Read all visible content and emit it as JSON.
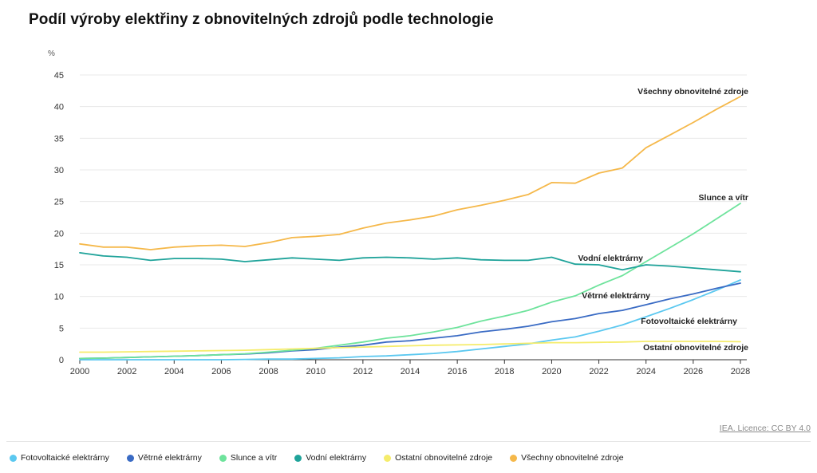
{
  "title": "Podíl výroby elektřiny z obnovitelných zdrojů podle technologie",
  "source": "IEA. Licence: CC BY 4.0",
  "chart_data": {
    "type": "line",
    "title": "Podíl výroby elektřiny z obnovitelných zdrojů podle technologie",
    "ylabel": "%",
    "xlabel": "",
    "ylim": [
      0,
      45
    ],
    "xlim": [
      2000,
      2028
    ],
    "y_ticks": [
      0,
      5,
      10,
      15,
      20,
      25,
      30,
      35,
      40,
      45
    ],
    "x_ticks": [
      2000,
      2002,
      2004,
      2006,
      2008,
      2010,
      2012,
      2014,
      2016,
      2018,
      2020,
      2022,
      2024,
      2026,
      2028
    ],
    "grid": "horizontal",
    "legend_position": "bottom",
    "x": [
      2000,
      2001,
      2002,
      2003,
      2004,
      2005,
      2006,
      2007,
      2008,
      2009,
      2010,
      2011,
      2012,
      2013,
      2014,
      2015,
      2016,
      2017,
      2018,
      2019,
      2020,
      2021,
      2022,
      2023,
      2024,
      2025,
      2026,
      2027,
      2028
    ],
    "series": [
      {
        "name": "Fotovoltaické elektrárny",
        "label": "Fotovoltaické elektrárny",
        "color": "#5bc8f0",
        "values": [
          0.0,
          0.0,
          0.0,
          0.0,
          0.0,
          0.0,
          0.0,
          0.05,
          0.1,
          0.1,
          0.2,
          0.3,
          0.5,
          0.6,
          0.8,
          1.0,
          1.3,
          1.7,
          2.1,
          2.5,
          3.1,
          3.6,
          4.5,
          5.5,
          6.8,
          8.1,
          9.5,
          11.0,
          12.6
        ]
      },
      {
        "name": "Větrné elektrárny",
        "label": "Větrné elektrárny",
        "color": "#3a6bc4",
        "values": [
          0.2,
          0.25,
          0.35,
          0.45,
          0.55,
          0.65,
          0.8,
          0.9,
          1.1,
          1.4,
          1.6,
          2.0,
          2.3,
          2.8,
          3.0,
          3.4,
          3.8,
          4.4,
          4.8,
          5.3,
          6.0,
          6.5,
          7.3,
          7.8,
          8.7,
          9.6,
          10.4,
          11.3,
          12.1
        ]
      },
      {
        "name": "Slunce a vítr",
        "label": "Slunce a vítr",
        "color": "#6ee39c",
        "values": [
          0.2,
          0.25,
          0.35,
          0.45,
          0.55,
          0.65,
          0.8,
          0.95,
          1.2,
          1.5,
          1.8,
          2.3,
          2.8,
          3.4,
          3.8,
          4.4,
          5.1,
          6.1,
          6.9,
          7.8,
          9.1,
          10.1,
          11.8,
          13.3,
          15.5,
          17.7,
          19.9,
          22.3,
          24.7
        ]
      },
      {
        "name": "Vodní elektrárny",
        "label": "Vodní elektrárny",
        "color": "#1fa39a",
        "values": [
          16.9,
          16.4,
          16.2,
          15.7,
          16.0,
          16.0,
          15.9,
          15.5,
          15.8,
          16.1,
          15.9,
          15.7,
          16.1,
          16.2,
          16.1,
          15.9,
          16.1,
          15.8,
          15.7,
          15.7,
          16.2,
          15.1,
          15.0,
          14.2,
          15.0,
          14.8,
          14.5,
          14.2,
          13.9
        ]
      },
      {
        "name": "Ostatní obnovitelné zdroje",
        "label": "Ostatní obnovitelné zdroje",
        "color": "#f5ec6b",
        "values": [
          1.2,
          1.2,
          1.25,
          1.3,
          1.35,
          1.4,
          1.45,
          1.5,
          1.6,
          1.7,
          1.8,
          1.9,
          2.0,
          2.1,
          2.2,
          2.3,
          2.35,
          2.4,
          2.5,
          2.6,
          2.7,
          2.7,
          2.75,
          2.8,
          2.9,
          2.9,
          2.9,
          2.9,
          2.85
        ]
      },
      {
        "name": "Všechny obnovitelné zdroje",
        "label": "Všechny obnovitelné zdroje",
        "color": "#f5b84a",
        "values": [
          18.3,
          17.8,
          17.8,
          17.4,
          17.8,
          18.0,
          18.1,
          17.9,
          18.5,
          19.3,
          19.5,
          19.8,
          20.8,
          21.6,
          22.1,
          22.7,
          23.7,
          24.4,
          25.2,
          26.1,
          28.0,
          27.9,
          29.5,
          30.3,
          33.5,
          35.5,
          37.5,
          39.6,
          41.6
        ]
      }
    ]
  }
}
